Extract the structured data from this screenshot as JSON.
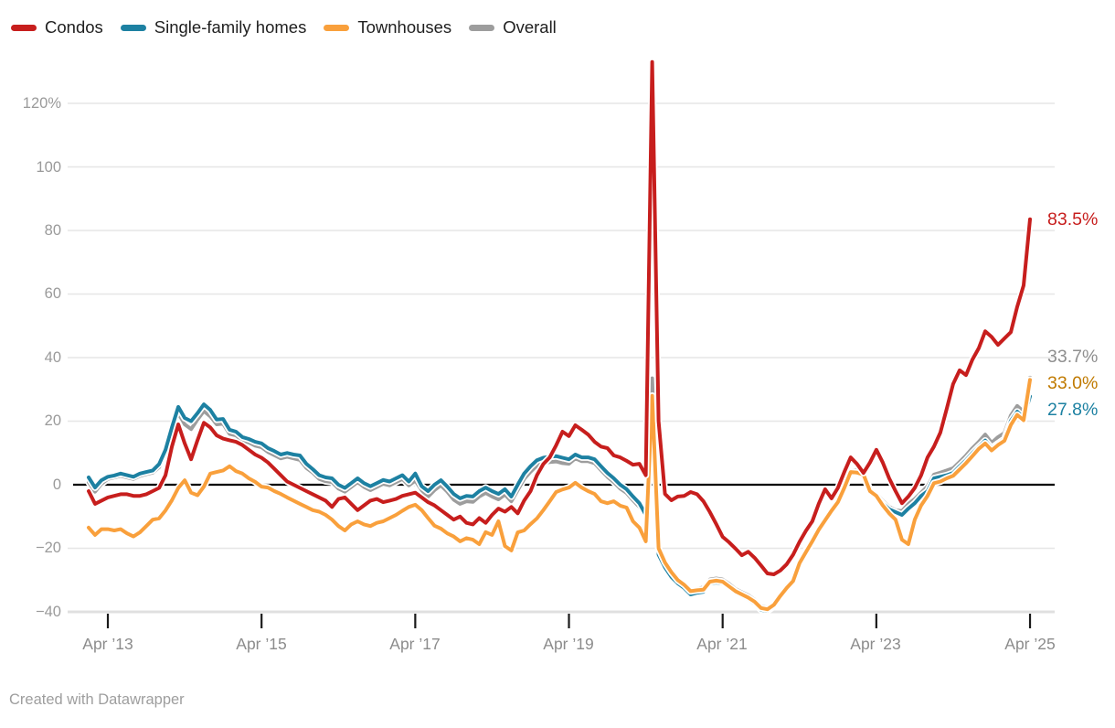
{
  "legend": {
    "items": [
      {
        "label": "Condos"
      },
      {
        "label": "Single-family homes"
      },
      {
        "label": "Townhouses"
      },
      {
        "label": "Overall"
      }
    ]
  },
  "y_axis": {
    "tick_labels": [
      "120%",
      "100",
      "80",
      "60",
      "40",
      "20",
      "0",
      "−20",
      "−40"
    ],
    "tick_values": [
      120,
      100,
      80,
      60,
      40,
      20,
      0,
      -20,
      -40
    ]
  },
  "x_axis": {
    "tick_labels": [
      "Apr ’13",
      "Apr ’15",
      "Apr ’17",
      "Apr ’19",
      "Apr ’21",
      "Apr ’23",
      "Apr ’25"
    ],
    "tick_month_indices": [
      3,
      27,
      51,
      75,
      99,
      123,
      147
    ]
  },
  "footer": {
    "credit": "Created with Datawrapper"
  },
  "chart_data": {
    "type": "line",
    "title": "",
    "x_start": "2013-01",
    "x_end": "2025-04",
    "interval": "monthly",
    "unit": "%",
    "ylim": [
      -45,
      135
    ],
    "grid": true,
    "legend_position": "top",
    "zero_baseline": true,
    "gridline_values": [
      120,
      100,
      80,
      60,
      40,
      20,
      -20,
      -40
    ],
    "series": [
      {
        "name": "Condos",
        "color": "#c71e1d",
        "label_color": "#c71e1d",
        "end_label": "83.5%",
        "end_value": 83.5,
        "values": [
          -2,
          -6,
          -5,
          -4,
          -3.5,
          -3,
          -3,
          -3.5,
          -3.5,
          -3,
          -2,
          -1,
          3,
          12,
          19,
          13,
          8,
          14,
          19.5,
          18,
          15.5,
          14.5,
          14,
          13.5,
          12.5,
          11,
          9.5,
          8.5,
          7,
          5,
          3,
          1,
          0,
          -1,
          -2,
          -3,
          -4,
          -5,
          -7,
          -4.5,
          -4,
          -6,
          -8,
          -6.5,
          -5,
          -4.5,
          -5.5,
          -5,
          -4.5,
          -3.5,
          -3,
          -2.5,
          -4,
          -5.5,
          -6.5,
          -8,
          -9.5,
          -11,
          -10,
          -12,
          -12.5,
          -10.5,
          -12,
          -9.5,
          -7.5,
          -8.5,
          -7,
          -9,
          -5,
          -2,
          3,
          6.5,
          8.6,
          12.4,
          16.7,
          15.3,
          18.7,
          17.3,
          15.8,
          13.5,
          12,
          11.5,
          9.2,
          8.6,
          7.5,
          6.3,
          6.6,
          3,
          133,
          20,
          -2.9,
          -4.9,
          -3.7,
          -3.5,
          -2.3,
          -3,
          -5.2,
          -8.6,
          -12.4,
          -16.4,
          -18.1,
          -20.1,
          -22.2,
          -21.1,
          -23,
          -25.4,
          -27.9,
          -28.2,
          -27,
          -25,
          -22,
          -18,
          -14.5,
          -11.5,
          -6,
          -1.4,
          -4.3,
          -1,
          4,
          8.6,
          6.5,
          3.7,
          7,
          11,
          7,
          2,
          -2,
          -5.8,
          -3.7,
          -1,
          3,
          8.6,
          12,
          16.4,
          23.9,
          31.7,
          36,
          34.5,
          39.4,
          43,
          48.3,
          46.5,
          44,
          46,
          48,
          56,
          62.7,
          83.5
        ]
      },
      {
        "name": "Single-family homes",
        "color": "#1d81a2",
        "label_color": "#1d81a2",
        "end_label": "27.8%",
        "end_value": 27.8,
        "values": [
          2.3,
          -0.9,
          1.4,
          2.5,
          2.9,
          3.5,
          3,
          2.5,
          3.5,
          4,
          4.5,
          6.5,
          11,
          18,
          24.5,
          21,
          20,
          22.5,
          25.3,
          23.5,
          20.5,
          20.7,
          17.3,
          16.7,
          15,
          14.4,
          13.5,
          13,
          11.5,
          10.6,
          9.5,
          10,
          9.5,
          9.2,
          6.6,
          4.9,
          3,
          2.3,
          2,
          0,
          -1,
          0.5,
          2,
          0.5,
          -0.5,
          0.5,
          1.5,
          1,
          2,
          3,
          1,
          3.5,
          -0.5,
          -2,
          0,
          1.4,
          -0.6,
          -2.9,
          -4.3,
          -3.5,
          -3.7,
          -2,
          -0.9,
          -2,
          -2.9,
          -1.4,
          -3.7,
          0,
          3.5,
          5.8,
          7.7,
          8.5,
          8.8,
          9,
          8.5,
          8,
          9.5,
          8.6,
          8.6,
          8,
          5.8,
          3.7,
          2,
          0,
          -1.4,
          -3.7,
          -5.8,
          -9.5,
          25.3,
          -22,
          -26,
          -29,
          -31,
          -32.5,
          -34.5,
          -34,
          -33.7,
          -31,
          -30.8,
          -31,
          -32.5,
          -34,
          -35,
          -36,
          -37.4,
          -39.4,
          -39.7,
          -38.3,
          -35.4,
          -33,
          -30.8,
          -25,
          -21.5,
          -18.1,
          -14.5,
          -11.5,
          -8.5,
          -5.8,
          -1.5,
          3.7,
          3.5,
          2.9,
          -2.3,
          -3.7,
          -5.8,
          -7.7,
          -8.6,
          -9.5,
          -7.5,
          -5.8,
          -3.5,
          -2,
          2,
          2.5,
          3,
          3.7,
          5.8,
          7.7,
          10,
          12,
          13.9,
          11.5,
          13,
          14.4,
          20.1,
          23,
          21,
          27.8
        ]
      },
      {
        "name": "Townhouses",
        "color": "#f9a03c",
        "label_color": "#c07a00",
        "end_label": "33.0%",
        "end_value": 33.0,
        "values": [
          -13.5,
          -15.8,
          -14,
          -14,
          -14.4,
          -14,
          -15.3,
          -16.3,
          -15,
          -13,
          -11,
          -10.6,
          -8.1,
          -4.9,
          -1,
          1.4,
          -2.5,
          -3.3,
          -0.6,
          3.5,
          4,
          4.5,
          5.8,
          4.3,
          3.5,
          2,
          0.9,
          -0.6,
          -0.9,
          -2,
          -2.9,
          -4,
          -5,
          -6,
          -7,
          -8,
          -8.5,
          -9.5,
          -11,
          -13,
          -14.4,
          -12.5,
          -11.5,
          -12.5,
          -13,
          -12,
          -11.5,
          -10.5,
          -9.5,
          -8.2,
          -7,
          -6.3,
          -8,
          -10.5,
          -12.9,
          -13.8,
          -15.3,
          -16.3,
          -17.8,
          -16.8,
          -17.3,
          -18.7,
          -14.9,
          -15.8,
          -11.5,
          -19.3,
          -20.7,
          -15,
          -14.4,
          -12.4,
          -10.6,
          -8,
          -5.2,
          -2.3,
          -1.5,
          -0.9,
          0.6,
          -0.9,
          -2,
          -2.9,
          -5.2,
          -5.8,
          -5.2,
          -6.6,
          -7.2,
          -11.5,
          -13.5,
          -17.8,
          28,
          -20,
          -24.5,
          -27.5,
          -30,
          -31.5,
          -33.5,
          -33.2,
          -33,
          -30.5,
          -30.2,
          -30.5,
          -32,
          -33.5,
          -34.5,
          -35.5,
          -36.8,
          -38.8,
          -39.2,
          -37.8,
          -35,
          -32.5,
          -30.3,
          -24.7,
          -21.2,
          -17.8,
          -14.2,
          -11.2,
          -8.2,
          -5.5,
          -1,
          4,
          3.8,
          3.2,
          -2,
          -3.5,
          -6.5,
          -9,
          -11,
          -17.3,
          -18.7,
          -11,
          -6.5,
          -3.5,
          0.5,
          1,
          2,
          2.8,
          4.8,
          6.8,
          9,
          11.3,
          13,
          10.8,
          12.5,
          13.8,
          18.8,
          22,
          20.3,
          33
        ]
      },
      {
        "name": "Overall",
        "color": "#9d9d9d",
        "label_color": "#8f8f8f",
        "end_label": "33.7%",
        "end_value": 33.7,
        "values": [
          0.8,
          -2.2,
          0.3,
          1.8,
          2.3,
          2.8,
          2.3,
          1.8,
          2.8,
          3.3,
          3.8,
          5.5,
          10,
          17,
          22.5,
          19,
          17.5,
          20.5,
          23.2,
          21.5,
          19,
          19.2,
          16,
          15.5,
          14,
          13.3,
          12.3,
          11.8,
          10.3,
          9.3,
          8.3,
          8.8,
          8.3,
          7.8,
          5.3,
          3.8,
          1.8,
          1.1,
          0.8,
          -1.2,
          -2.2,
          -0.7,
          0.8,
          -0.7,
          -1.7,
          -0.7,
          0.3,
          -0.2,
          0.8,
          1.8,
          -0.2,
          1.3,
          -1.7,
          -3.7,
          -1.7,
          -0.2,
          -2.2,
          -4.7,
          -6,
          -5.2,
          -5.4,
          -3.7,
          -2.6,
          -3.7,
          -4.6,
          -3.1,
          -5.2,
          -1.7,
          1.8,
          4.1,
          6,
          6.8,
          7.1,
          7.3,
          6.8,
          6.6,
          8.3,
          7.4,
          7.4,
          6.8,
          4.6,
          2.5,
          0.8,
          -1.2,
          -2.6,
          -4.9,
          -7,
          -8.7,
          33.5,
          -20.5,
          -24.8,
          -27.8,
          -29.8,
          -31.2,
          -33.2,
          -32.8,
          -32.3,
          -29.8,
          -29.5,
          -29.8,
          -31.2,
          -32.8,
          -33.8,
          -34.8,
          -36.2,
          -38.2,
          -38.7,
          -37.2,
          -34.3,
          -31.8,
          -29.8,
          -24.2,
          -20.7,
          -17.2,
          -13.7,
          -10.7,
          -7.7,
          -5,
          -0.7,
          4.3,
          4.5,
          3.5,
          -1.5,
          -3,
          -5,
          -7,
          -8,
          -8.3,
          -6,
          -4.5,
          -2.5,
          -0.5,
          3.2,
          3.8,
          4.5,
          5.2,
          7.2,
          9.2,
          11.5,
          13.5,
          15.8,
          13.2,
          15,
          16.3,
          21.8,
          24.8,
          23,
          33.7
        ]
      }
    ],
    "draw_order": [
      3,
      1,
      2,
      0
    ],
    "colors": {
      "grid": "#e6e6e6",
      "baseline_grid": "#e0e0e0",
      "zero_line": "#000000",
      "tick": "#1a1a1a"
    }
  }
}
